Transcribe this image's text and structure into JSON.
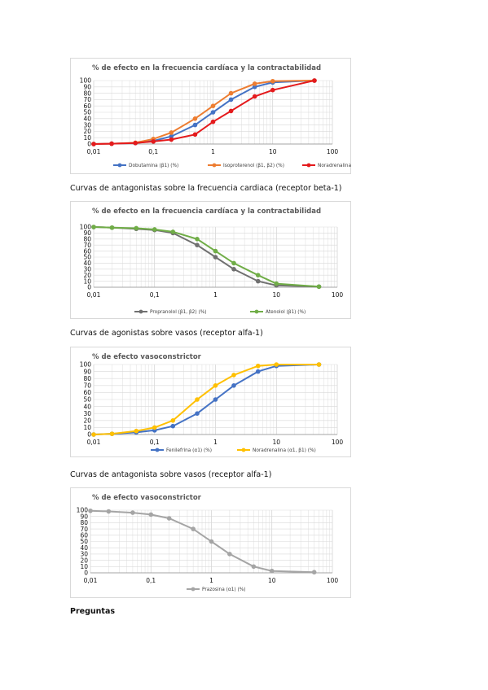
{
  "captions": [
    "Curvas de antagonistas sobre la frecuencia cardiaca (receptor beta-1)",
    "Curvas de agonistas sobre vasos (receptor alfa-1)",
    "Curvas de antagonista sobre vasos (receptor alfa-1)"
  ],
  "heading": "Preguntas",
  "chart_data": [
    {
      "type": "line",
      "title": "% de efecto en la frecuencia cardíaca y la contractabilidad",
      "xscale": "log",
      "xlim": [
        0.01,
        100
      ],
      "ylim": [
        0,
        100
      ],
      "x_tick_labels": [
        "0,01",
        "0,1",
        "1",
        "10",
        "100"
      ],
      "y_tick_labels": [
        "0",
        "10",
        "20",
        "30",
        "40",
        "50",
        "60",
        "70",
        "80",
        "90",
        "100"
      ],
      "grid": true,
      "legend_position": "bottom",
      "x": [
        0.01,
        0.02,
        0.05,
        0.1,
        0.2,
        0.5,
        1,
        2,
        5,
        10,
        50
      ],
      "series": [
        {
          "name": "Dobutamina (β1) (%)",
          "color": "#4472C4",
          "values": [
            0,
            0.5,
            1.5,
            5,
            12,
            30,
            50,
            70,
            90,
            97,
            100
          ]
        },
        {
          "name": "Isoproterenol (β1, β2) (%)",
          "color": "#ED7D31",
          "values": [
            0,
            0.5,
            2,
            8,
            18,
            40,
            60,
            80,
            95,
            99,
            100
          ]
        },
        {
          "name": "Noradrenalina (α1, β1) (%)",
          "color": "#E41A1C",
          "values": [
            0,
            0.5,
            1.5,
            4,
            7,
            15,
            35,
            52,
            75,
            85,
            100
          ]
        }
      ]
    },
    {
      "type": "line",
      "title": "% de efecto en la frecuencia cardíaca y la contractabilidad",
      "xscale": "log",
      "xlim": [
        0.01,
        100
      ],
      "ylim": [
        0,
        100
      ],
      "x_tick_labels": [
        "0,01",
        "0,1",
        "1",
        "10",
        "100"
      ],
      "y_tick_labels": [
        "0",
        "10",
        "20",
        "30",
        "40",
        "50",
        "60",
        "70",
        "80",
        "90",
        "100"
      ],
      "grid": true,
      "legend_position": "bottom",
      "x": [
        0.01,
        0.02,
        0.05,
        0.1,
        0.2,
        0.5,
        1,
        2,
        5,
        10,
        50
      ],
      "series": [
        {
          "name": "Propranolol (β1, β2) (%)",
          "color": "#707070",
          "values": [
            100,
            99,
            97,
            95,
            90,
            70,
            50,
            30,
            10,
            3,
            1
          ]
        },
        {
          "name": "Atenolol (β1) (%)",
          "color": "#70AD47",
          "values": [
            100,
            99,
            98,
            96,
            92,
            80,
            60,
            40,
            20,
            6,
            1
          ]
        }
      ]
    },
    {
      "type": "line",
      "title": "% de efecto vasoconstrictor",
      "xscale": "log",
      "xlim": [
        0.01,
        100
      ],
      "ylim": [
        0,
        100
      ],
      "x_tick_labels": [
        "0,01",
        "0,1",
        "1",
        "10",
        "100"
      ],
      "y_tick_labels": [
        "0",
        "10",
        "20",
        "30",
        "40",
        "50",
        "60",
        "70",
        "80",
        "90",
        "100"
      ],
      "grid": true,
      "legend_position": "bottom",
      "x": [
        0.01,
        0.02,
        0.05,
        0.1,
        0.2,
        0.5,
        1,
        2,
        5,
        10,
        50
      ],
      "series": [
        {
          "name": "Fenilefrina (α1) (%)",
          "color": "#4472C4",
          "values": [
            0,
            1,
            3,
            6,
            12,
            30,
            50,
            70,
            90,
            98,
            100
          ]
        },
        {
          "name": "Noradrenalina (α1, β1) (%)",
          "color": "#FFC000",
          "values": [
            0,
            1,
            5,
            10,
            20,
            50,
            70,
            85,
            98,
            100,
            100
          ]
        }
      ]
    },
    {
      "type": "line",
      "title": "% de efecto vasoconstrictor",
      "xscale": "log",
      "xlim": [
        0.01,
        100
      ],
      "ylim": [
        0,
        100
      ],
      "x_tick_labels": [
        "0,01",
        "0,1",
        "1",
        "10",
        "100"
      ],
      "y_tick_labels": [
        "0",
        "10",
        "20",
        "30",
        "40",
        "50",
        "60",
        "70",
        "80",
        "90",
        "100"
      ],
      "grid": true,
      "legend_position": "bottom",
      "x": [
        0.01,
        0.02,
        0.05,
        0.1,
        0.2,
        0.5,
        1,
        2,
        5,
        10,
        50
      ],
      "series": [
        {
          "name": "Prazosina (α1) (%)",
          "color": "#A5A5A5",
          "values": [
            99,
            98,
            96,
            93,
            87,
            70,
            50,
            30,
            10,
            3,
            1
          ]
        }
      ]
    }
  ]
}
